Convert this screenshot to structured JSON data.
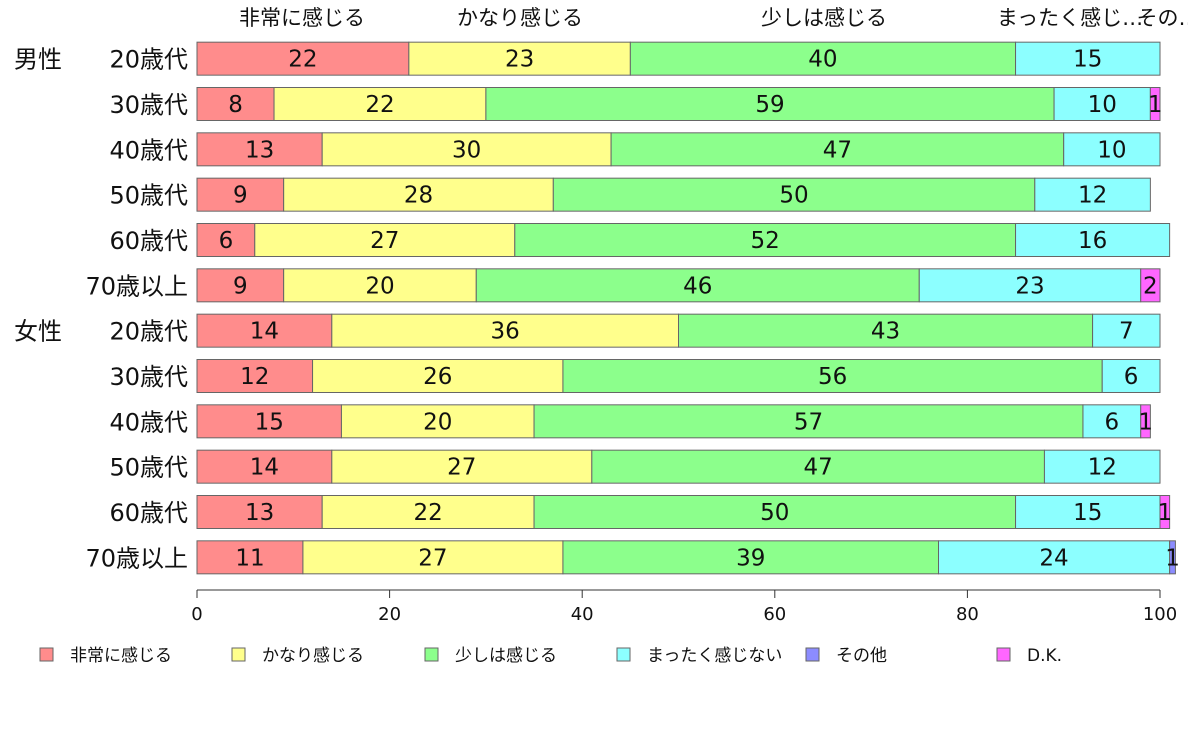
{
  "chart_data": {
    "type": "bar",
    "orientation": "horizontal",
    "stacked": true,
    "xlim": [
      0,
      100
    ],
    "xticks": [
      "0",
      "20",
      "40",
      "60",
      "80",
      "100"
    ],
    "group_labels": [
      "男性",
      "女性"
    ],
    "categories": [
      "20歳代",
      "30歳代",
      "40歳代",
      "50歳代",
      "60歳代",
      "70歳以上",
      "20歳代",
      "30歳代",
      "40歳代",
      "50歳代",
      "60歳代",
      "70歳以上"
    ],
    "top_labels": [
      "非常に感じる",
      "かなり感じる",
      "少しは感じる",
      "まったく感じ…",
      "その…"
    ],
    "series": [
      {
        "name": "非常に感じる",
        "color": "#ff8c8c",
        "values": [
          22,
          8,
          13,
          9,
          6,
          9,
          14,
          12,
          15,
          14,
          13,
          11
        ]
      },
      {
        "name": "かなり感じる",
        "color": "#ffff8c",
        "values": [
          23,
          22,
          30,
          28,
          27,
          20,
          36,
          26,
          20,
          27,
          22,
          27
        ]
      },
      {
        "name": "少しは感じる",
        "color": "#8cff8c",
        "values": [
          40,
          59,
          47,
          50,
          52,
          46,
          43,
          56,
          57,
          47,
          50,
          39
        ]
      },
      {
        "name": "まったく感じない",
        "color": "#8cffff",
        "values": [
          15,
          10,
          10,
          12,
          16,
          23,
          7,
          6,
          6,
          12,
          15,
          24
        ]
      },
      {
        "name": "その他",
        "color": "#8c8cff",
        "values": [
          0,
          0,
          0,
          0,
          0,
          0,
          0,
          0,
          0,
          0,
          0,
          0.6
        ]
      },
      {
        "name": "D.K.",
        "color": "#ff66ff",
        "values": [
          0,
          1,
          0,
          0,
          0,
          2,
          0,
          0,
          1,
          0,
          1,
          0
        ]
      }
    ],
    "data_labels": [
      [
        "22",
        "23",
        "40",
        "15",
        "",
        ""
      ],
      [
        "8",
        "22",
        "59",
        "10",
        "",
        "1"
      ],
      [
        "13",
        "30",
        "47",
        "10",
        "",
        ""
      ],
      [
        "9",
        "28",
        "50",
        "12",
        "",
        ""
      ],
      [
        "6",
        "27",
        "52",
        "16",
        "",
        ""
      ],
      [
        "9",
        "20",
        "46",
        "23",
        "",
        "2"
      ],
      [
        "14",
        "36",
        "43",
        "7",
        "",
        ""
      ],
      [
        "12",
        "26",
        "56",
        "6",
        "",
        ""
      ],
      [
        "15",
        "20",
        "57",
        "6",
        "",
        "1"
      ],
      [
        "14",
        "27",
        "47",
        "12",
        "",
        ""
      ],
      [
        "13",
        "22",
        "50",
        "15",
        "",
        "1"
      ],
      [
        "11",
        "27",
        "39",
        "24",
        "1",
        ""
      ]
    ],
    "legend": {
      "position": "bottom"
    }
  }
}
